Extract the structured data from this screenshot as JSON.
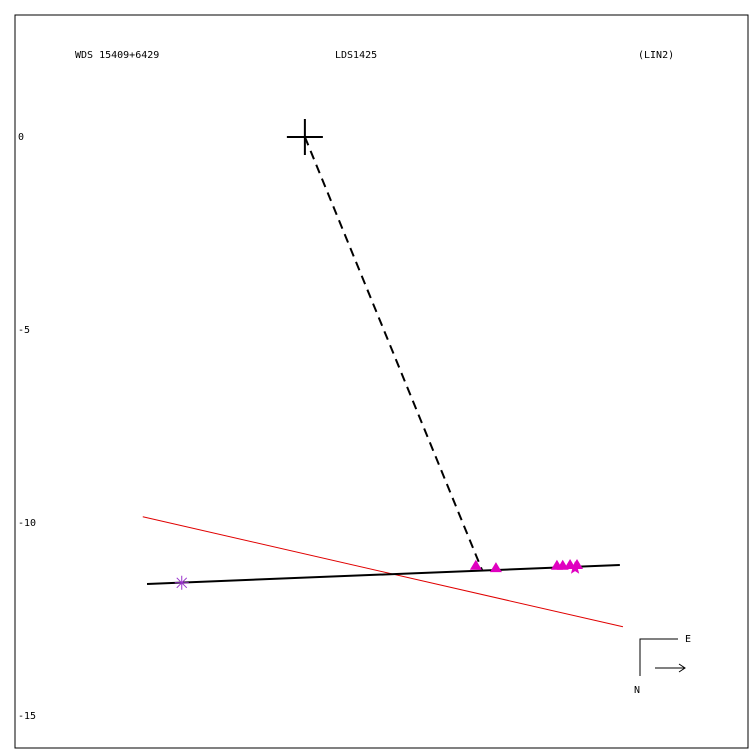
{
  "chart_data": {
    "type": "scatter",
    "titles": [
      "WDS 15409+6429",
      "LDS1425",
      "(LIN2)"
    ],
    "xlim": [
      -7.51,
      11.48
    ],
    "ylim": [
      -15.83,
      3.16
    ],
    "yticks": [
      0,
      -5,
      -10,
      -15
    ],
    "grid": false,
    "primary": {
      "x": 0,
      "y": 0,
      "color": "#000000"
    },
    "connector": {
      "x": [
        0,
        4.59
      ],
      "y": [
        0,
        -11.22
      ],
      "color": "#000000"
    },
    "fit_line": {
      "x": [
        -4.09,
        8.16
      ],
      "y": [
        -11.58,
        -11.09
      ],
      "color": "#000000"
    },
    "red_line": {
      "x": [
        -4.2,
        8.24
      ],
      "y": [
        -9.84,
        -12.69
      ],
      "color": "#e00000"
    },
    "first_point": {
      "x": -3.19,
      "y": -11.55,
      "color": "#9933cc"
    },
    "measurements": {
      "x": [
        4.43,
        4.95,
        6.53,
        6.68,
        6.87,
        7.05
      ],
      "y": [
        -11.11,
        -11.17,
        -11.11,
        -11.11,
        -11.09,
        -11.09
      ],
      "color": "#e000c0"
    },
    "last_point": {
      "x": 7.0,
      "y": -11.17,
      "color": "#e000c0"
    },
    "compass": {
      "east": "E",
      "north": "N"
    }
  }
}
